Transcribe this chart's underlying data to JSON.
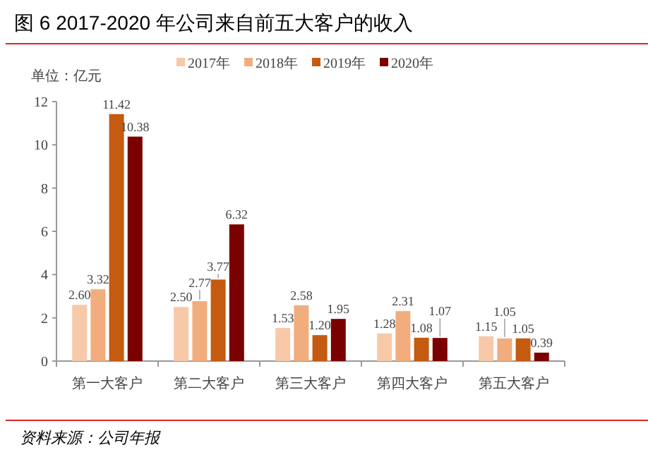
{
  "chart_data": {
    "type": "bar",
    "title": "图 6 2017-2020 年公司来自前五大客户的收入",
    "ylabel": "单位：亿元",
    "categories": [
      "第一大客户",
      "第二大客户",
      "第三大客户",
      "第四大客户",
      "第五大客户"
    ],
    "series": [
      {
        "name": "2017年",
        "color": "#f8c9a8",
        "values": [
          2.6,
          2.5,
          1.53,
          1.28,
          1.15
        ],
        "value_labels": [
          "2.60",
          "2.50",
          "1.53",
          "1.28",
          "1.15"
        ]
      },
      {
        "name": "2018年",
        "color": "#f2ad7e",
        "values": [
          3.32,
          2.77,
          2.58,
          2.31,
          1.05
        ],
        "value_labels": [
          "3.32",
          "2.77",
          "2.58",
          "2.31",
          "1.05"
        ]
      },
      {
        "name": "2019年",
        "color": "#c55a11",
        "values": [
          11.42,
          3.77,
          1.2,
          1.08,
          1.05
        ],
        "value_labels": [
          "11.42",
          "3.77",
          "1.20",
          "1.08",
          "1.05"
        ]
      },
      {
        "name": "2020年",
        "color": "#7b0000",
        "values": [
          10.38,
          6.32,
          1.95,
          1.07,
          0.39
        ],
        "value_labels": [
          "10.38",
          "6.32",
          "1.95",
          "1.07",
          "0.39"
        ]
      }
    ],
    "ylim": [
      0,
      12
    ],
    "yticks": [
      0,
      2,
      4,
      6,
      8,
      10,
      12
    ],
    "grid": false,
    "legend": "top",
    "annotations": [
      "资料来源：公司年报"
    ]
  }
}
